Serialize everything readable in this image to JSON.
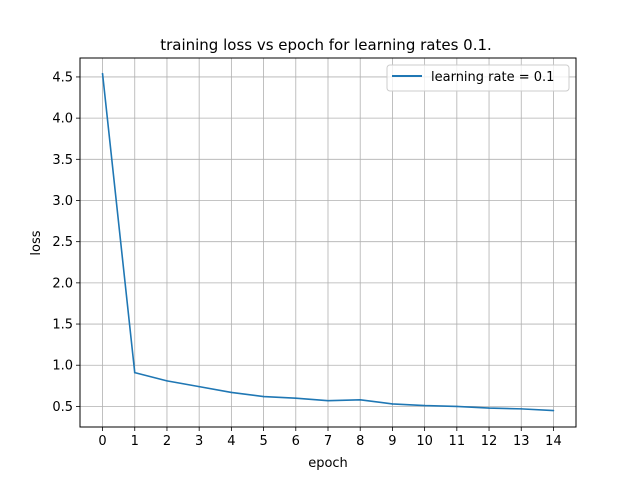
{
  "chart_data": {
    "type": "line",
    "title": "training loss vs epoch for learning rates 0.1.",
    "xlabel": "epoch",
    "ylabel": "loss",
    "xlim": [
      -0.7,
      14.7
    ],
    "ylim": [
      0.25,
      4.73
    ],
    "xticks": [
      "0",
      "1",
      "2",
      "3",
      "4",
      "5",
      "6",
      "7",
      "8",
      "9",
      "10",
      "11",
      "12",
      "13",
      "14"
    ],
    "yticks": [
      "0.5",
      "1.0",
      "1.5",
      "2.0",
      "2.5",
      "3.0",
      "3.5",
      "4.0",
      "4.5"
    ],
    "grid": true,
    "legend_position": "top-right",
    "series": [
      {
        "name": "learning rate = 0.1",
        "color": "#1f77b4",
        "x": [
          0,
          1,
          2,
          3,
          4,
          5,
          6,
          7,
          8,
          9,
          10,
          11,
          12,
          13,
          14
        ],
        "y": [
          4.54,
          0.91,
          0.81,
          0.74,
          0.67,
          0.62,
          0.6,
          0.57,
          0.58,
          0.53,
          0.51,
          0.5,
          0.48,
          0.47,
          0.45
        ]
      }
    ]
  }
}
